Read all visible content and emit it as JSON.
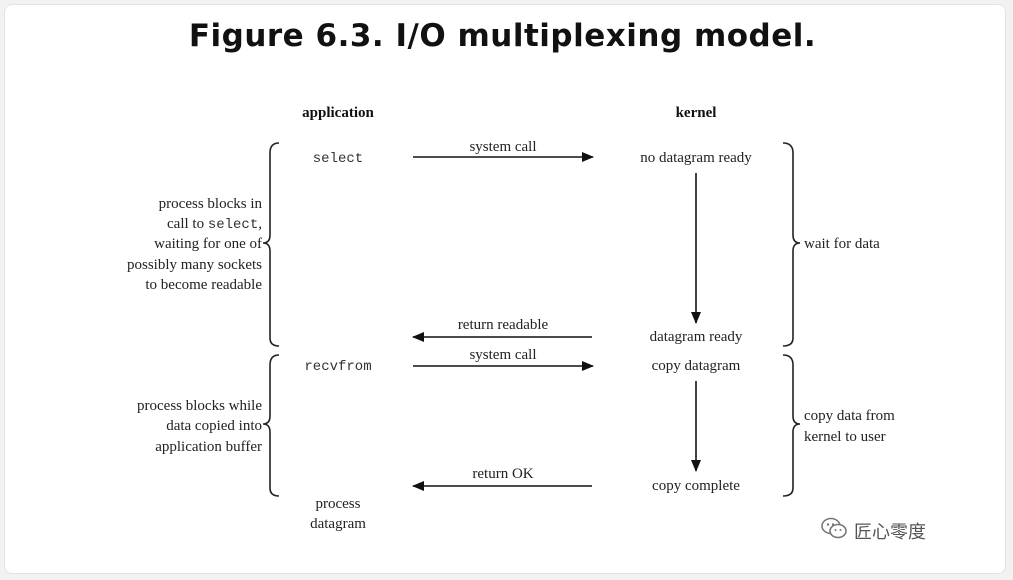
{
  "title": "Figure 6.3. I/O multiplexing model.",
  "headers": {
    "application": "application",
    "kernel": "kernel"
  },
  "application_calls": {
    "select": "select",
    "recvfrom": "recvfrom",
    "process_datagram_line1": "process",
    "process_datagram_line2": "datagram"
  },
  "kernel_states": {
    "no_datagram_ready": "no datagram ready",
    "datagram_ready": "datagram ready",
    "copy_datagram": "copy datagram",
    "copy_complete": "copy complete"
  },
  "arrows": {
    "system_call_1": "system call",
    "return_readable": "return readable",
    "system_call_2": "system call",
    "return_ok": "return OK"
  },
  "left_notes": {
    "block_select": {
      "line1": "process blocks in",
      "line2_prefix": "call to ",
      "line2_code": "select",
      "line2_suffix": ",",
      "line3": "waiting for one of",
      "line4": "possibly many sockets",
      "line5": "to become readable"
    },
    "block_copy": {
      "line1": "process blocks while",
      "line2": "data copied into",
      "line3": "application buffer"
    }
  },
  "right_notes": {
    "wait_for_data": "wait for data",
    "copy_line1": "copy data from",
    "copy_line2": "kernel to user"
  },
  "watermark": {
    "text": "匠心零度",
    "icon": "wechat-icon"
  },
  "colors": {
    "ink": "#111111",
    "background": "#ffffff"
  }
}
